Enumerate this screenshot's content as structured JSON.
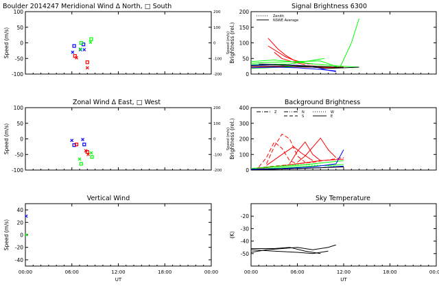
{
  "chart_data": [
    {
      "type": "scatter",
      "title": "Boulder   2014247     Meridional Wind   Δ North, □ South",
      "xlabel": "",
      "ylabel": "Speed (m/s)",
      "ylabel_right": "Speed (m/s)",
      "xlim": [
        0,
        24
      ],
      "ylim": [
        -100,
        100
      ],
      "ylim_right": [
        -200,
        200
      ],
      "yticks": [
        100,
        50,
        0,
        -50,
        -100
      ],
      "yticks_right": [
        200,
        100,
        0,
        -100,
        -200
      ],
      "xticklabels": [],
      "colors": {
        "blue": "#0000ff",
        "red": "#ff0000",
        "green": "#00ff00"
      },
      "series": [
        {
          "color": "blue",
          "marker": "square",
          "points": [
            [
              6.3,
              -10
            ],
            [
              7.5,
              -5
            ]
          ]
        },
        {
          "color": "blue",
          "marker": "x",
          "points": [
            [
              6.1,
              -30
            ],
            [
              7.1,
              -22
            ],
            [
              7.6,
              -22
            ]
          ]
        },
        {
          "color": "red",
          "marker": "square",
          "points": [
            [
              6.4,
              -42
            ],
            [
              8.0,
              -62
            ]
          ]
        },
        {
          "color": "red",
          "marker": "x",
          "points": [
            [
              6.6,
              -48
            ],
            [
              8.0,
              -80
            ]
          ]
        },
        {
          "color": "green",
          "marker": "square",
          "points": [
            [
              7.2,
              0
            ],
            [
              8.5,
              12
            ]
          ]
        },
        {
          "color": "green",
          "marker": "x",
          "points": [
            [
              7.1,
              -20
            ],
            [
              8.4,
              2
            ]
          ]
        }
      ]
    },
    {
      "type": "line",
      "title": "Signal Brightness       6300",
      "xlabel": "",
      "ylabel": "Brightness (rel.)",
      "xlim": [
        0,
        24
      ],
      "ylim": [
        0,
        200
      ],
      "yticks": [
        0,
        50,
        100,
        150,
        200
      ],
      "xticklabels": [],
      "legend": [
        {
          "label": "Zenith",
          "style": "dotted"
        },
        {
          "label": "NSWE Average",
          "style": "solid"
        }
      ],
      "series": [
        {
          "color": "red",
          "points": [
            [
              2.2,
              115
            ],
            [
              3.5,
              80
            ],
            [
              4.5,
              60
            ],
            [
              5.5,
              45
            ],
            [
              7,
              35
            ],
            [
              8,
              32
            ]
          ]
        },
        {
          "color": "red",
          "points": [
            [
              2.2,
              90
            ],
            [
              3.2,
              75
            ],
            [
              4.5,
              55
            ],
            [
              6,
              40
            ],
            [
              7.5,
              32
            ]
          ]
        },
        {
          "color": "red",
          "points": [
            [
              3,
              70
            ],
            [
              4,
              50
            ],
            [
              5.5,
              38
            ],
            [
              7,
              30
            ]
          ]
        },
        {
          "color": "red",
          "points": [
            [
              0,
              28
            ],
            [
              3,
              30
            ],
            [
              6,
              28
            ],
            [
              9,
              25
            ],
            [
              12,
              22
            ]
          ]
        },
        {
          "color": "red",
          "points": [
            [
              0,
              22
            ],
            [
              4,
              24
            ],
            [
              8,
              22
            ],
            [
              12,
              20
            ]
          ]
        },
        {
          "color": "green",
          "points": [
            [
              0,
              35
            ],
            [
              3,
              38
            ],
            [
              6,
              40
            ],
            [
              9,
              42
            ],
            [
              11.5,
              20
            ],
            [
              13,
              100
            ],
            [
              14,
              178
            ]
          ]
        },
        {
          "color": "green",
          "points": [
            [
              0,
              40
            ],
            [
              3,
              45
            ],
            [
              6,
              38
            ],
            [
              9,
              30
            ],
            [
              12,
              25
            ],
            [
              14,
              22
            ]
          ]
        },
        {
          "color": "green",
          "points": [
            [
              0,
              18
            ],
            [
              4,
              22
            ],
            [
              7,
              26
            ],
            [
              10,
              24
            ],
            [
              12,
              20
            ]
          ]
        },
        {
          "color": "green",
          "points": [
            [
              0,
              30
            ],
            [
              5,
              32
            ],
            [
              8,
              44
            ],
            [
              9.5,
              50
            ]
          ]
        },
        {
          "color": "blue",
          "points": [
            [
              0,
              28
            ],
            [
              3,
              30
            ],
            [
              6,
              28
            ],
            [
              8,
              25
            ],
            [
              10,
              12
            ],
            [
              11,
              8
            ]
          ]
        },
        {
          "color": "blue",
          "points": [
            [
              0,
              20
            ],
            [
              3,
              22
            ],
            [
              6,
              20
            ],
            [
              9,
              15
            ],
            [
              11,
              10
            ]
          ]
        },
        {
          "color": "black",
          "points": [
            [
              0,
              26
            ],
            [
              4,
              26
            ],
            [
              8,
              22
            ],
            [
              10,
              18
            ],
            [
              12,
              20
            ],
            [
              14,
              22
            ]
          ]
        },
        {
          "color": "black",
          "points": [
            [
              1,
              32
            ],
            [
              5,
              28
            ],
            [
              9,
              24
            ],
            [
              12,
              21
            ]
          ]
        }
      ]
    },
    {
      "type": "scatter",
      "title": "Zonal Wind      Δ East, □ West",
      "xlabel": "",
      "ylabel": "Speed (m/s)",
      "ylabel_right": "Speed (m/s)",
      "xlim": [
        0,
        24
      ],
      "ylim": [
        -100,
        100
      ],
      "ylim_right": [
        -200,
        200
      ],
      "yticks": [
        100,
        50,
        0,
        -50,
        -100
      ],
      "yticks_right": [
        200,
        100,
        0,
        -100,
        -200
      ],
      "xticklabels": [],
      "series": [
        {
          "color": "blue",
          "marker": "square",
          "points": [
            [
              6.3,
              -20
            ],
            [
              7.6,
              -18
            ]
          ]
        },
        {
          "color": "blue",
          "marker": "x",
          "points": [
            [
              6.0,
              -5
            ],
            [
              7.4,
              -2
            ]
          ]
        },
        {
          "color": "red",
          "marker": "square",
          "points": [
            [
              6.6,
              -18
            ],
            [
              8.0,
              -42
            ]
          ]
        },
        {
          "color": "red",
          "marker": "x",
          "points": [
            [
              7.8,
              -38
            ],
            [
              8.1,
              -50
            ]
          ]
        },
        {
          "color": "green",
          "marker": "square",
          "points": [
            [
              7.2,
              -80
            ],
            [
              8.6,
              -58
            ]
          ]
        },
        {
          "color": "green",
          "marker": "x",
          "points": [
            [
              7.0,
              -65
            ],
            [
              8.5,
              -45
            ]
          ]
        }
      ]
    },
    {
      "type": "line",
      "title": "Background Brightness",
      "xlabel": "",
      "ylabel": "Brightness (rel.)",
      "xlim": [
        0,
        24
      ],
      "ylim": [
        0,
        400
      ],
      "yticks": [
        0,
        100,
        200,
        300,
        400
      ],
      "xticklabels": [],
      "legend": [
        {
          "label": "Z",
          "style": "dash-dot"
        },
        {
          "label": "N",
          "style": "dash-dot-dot"
        },
        {
          "label": "S",
          "style": "dashed"
        },
        {
          "label": "W",
          "style": "dotted"
        },
        {
          "label": "E",
          "style": "solid"
        }
      ],
      "series": [
        {
          "color": "red",
          "dash": "6,3",
          "points": [
            [
              1,
              20
            ],
            [
              2,
              80
            ],
            [
              3,
              180
            ],
            [
              4,
              140
            ],
            [
              5,
              60
            ],
            [
              6,
              40
            ]
          ]
        },
        {
          "color": "red",
          "dash": "6,3",
          "points": [
            [
              2,
              40
            ],
            [
              3,
              150
            ],
            [
              4,
              230
            ],
            [
              5,
              200
            ],
            [
              6,
              90
            ],
            [
              7,
              50
            ]
          ]
        },
        {
          "color": "red",
          "points": [
            [
              2,
              30
            ],
            [
              4,
              100
            ],
            [
              5.5,
              150
            ],
            [
              6.5,
              110
            ],
            [
              8,
              60
            ]
          ]
        },
        {
          "color": "red",
          "points": [
            [
              5,
              40
            ],
            [
              6,
              120
            ],
            [
              7,
              180
            ],
            [
              8,
              100
            ],
            [
              9,
              60
            ]
          ]
        },
        {
          "color": "red",
          "points": [
            [
              6,
              50
            ],
            [
              7,
              90
            ],
            [
              9,
              205
            ],
            [
              10,
              130
            ],
            [
              11,
              80
            ]
          ]
        },
        {
          "color": "red",
          "points": [
            [
              0,
              5
            ],
            [
              3,
              20
            ],
            [
              6,
              40
            ],
            [
              9,
              60
            ],
            [
              12,
              70
            ]
          ]
        },
        {
          "color": "red",
          "dash": "6,3",
          "points": [
            [
              0,
              10
            ],
            [
              4,
              30
            ],
            [
              8,
              50
            ],
            [
              12,
              80
            ]
          ]
        },
        {
          "color": "green",
          "points": [
            [
              0,
              10
            ],
            [
              3,
              20
            ],
            [
              6,
              30
            ],
            [
              9,
              45
            ],
            [
              12,
              60
            ]
          ]
        },
        {
          "color": "green",
          "points": [
            [
              0,
              5
            ],
            [
              4,
              15
            ],
            [
              8,
              25
            ],
            [
              12,
              35
            ]
          ]
        },
        {
          "color": "green",
          "dash": "2,2",
          "points": [
            [
              0,
              8
            ],
            [
              3,
              25
            ],
            [
              6,
              35
            ],
            [
              9,
              30
            ],
            [
              12,
              20
            ]
          ]
        },
        {
          "color": "blue",
          "points": [
            [
              0,
              5
            ],
            [
              4,
              10
            ],
            [
              8,
              20
            ],
            [
              11,
              40
            ],
            [
              12,
              130
            ]
          ]
        },
        {
          "color": "blue",
          "points": [
            [
              0,
              3
            ],
            [
              5,
              8
            ],
            [
              9,
              15
            ],
            [
              12,
              25
            ]
          ]
        },
        {
          "color": "black",
          "points": [
            [
              0,
              0
            ],
            [
              3,
              5
            ],
            [
              6,
              10
            ],
            [
              9,
              15
            ],
            [
              12,
              20
            ]
          ]
        }
      ]
    },
    {
      "type": "scatter",
      "title": "Vertical Wind",
      "xlabel": "UT",
      "ylabel": "Speed (m/s)",
      "xlim": [
        0,
        24
      ],
      "ylim": [
        -50,
        50
      ],
      "yticks": [
        40,
        20,
        0,
        -20,
        -40
      ],
      "xticklabels": [
        "00:00",
        "06:00",
        "12:00",
        "18:00",
        "00:00"
      ],
      "series": [
        {
          "color": "blue",
          "marker": "x",
          "points": [
            [
              0.1,
              30
            ]
          ]
        },
        {
          "color": "green",
          "marker": "x",
          "points": [
            [
              0.1,
              0
            ]
          ]
        }
      ]
    },
    {
      "type": "line",
      "title": "Sky Temperature",
      "xlabel": "UT",
      "ylabel": "(K)",
      "xlim": [
        0,
        24
      ],
      "ylim": [
        -60,
        -10
      ],
      "yticks": [
        -20,
        -30,
        -40,
        -50
      ],
      "xticklabels": [
        "00:00",
        "06:00",
        "12:00",
        "18:00",
        "00:00"
      ],
      "series": [
        {
          "color": "black",
          "points": [
            [
              0,
              -46
            ],
            [
              3,
              -46
            ],
            [
              5,
              -45
            ],
            [
              7,
              -48
            ],
            [
              9,
              -50
            ]
          ]
        },
        {
          "color": "black",
          "points": [
            [
              0,
              -49
            ],
            [
              2,
              -47
            ],
            [
              4,
              -46
            ],
            [
              6,
              -45
            ],
            [
              8,
              -47
            ],
            [
              10,
              -45
            ],
            [
              11,
              -43
            ]
          ]
        },
        {
          "color": "black",
          "points": [
            [
              0,
              -47
            ],
            [
              3,
              -48
            ],
            [
              6,
              -49
            ],
            [
              8,
              -50
            ],
            [
              10,
              -48
            ]
          ]
        }
      ]
    }
  ]
}
